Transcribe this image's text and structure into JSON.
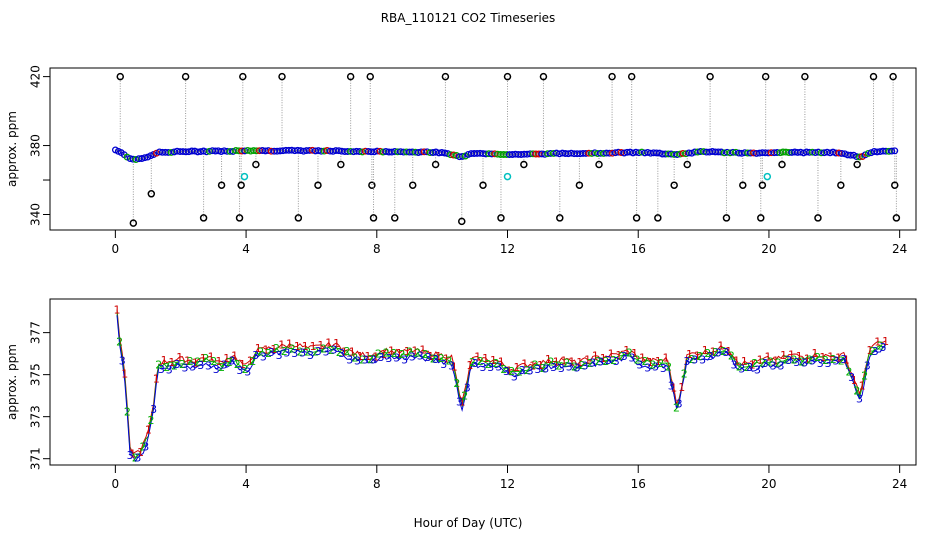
{
  "title": "RBA_110121  CO2 Timeseries",
  "xlabel": "Hour of Day (UTC)",
  "chart_data": [
    {
      "type": "scatter",
      "title": "RBA_110121  CO2 Timeseries",
      "ylabel": "approx. ppm",
      "xlim": [
        -2,
        24.5
      ],
      "ylim": [
        331,
        425
      ],
      "x_ticks": [
        "0",
        "4",
        "8",
        "12",
        "16",
        "20",
        "24"
      ],
      "y_ticks": [
        "340",
        "380",
        "420"
      ],
      "y_tick_values": [
        340,
        380,
        420
      ],
      "y_minor_ticks": [
        360
      ],
      "baseline": [
        [
          0,
          377.5
        ],
        [
          0.2,
          376
        ],
        [
          0.4,
          372.5
        ],
        [
          0.7,
          372
        ],
        [
          1.0,
          373.5
        ],
        [
          1.3,
          376
        ],
        [
          2,
          376.5
        ],
        [
          4,
          377
        ],
        [
          6,
          377
        ],
        [
          8,
          376.5
        ],
        [
          10,
          376
        ],
        [
          10.6,
          373.5
        ],
        [
          11,
          375.8
        ],
        [
          12,
          374.8
        ],
        [
          14,
          375.5
        ],
        [
          16,
          376
        ],
        [
          17.2,
          375
        ],
        [
          18,
          376.5
        ],
        [
          19.5,
          375.5
        ],
        [
          20,
          376
        ],
        [
          22,
          376
        ],
        [
          22.8,
          373.5
        ],
        [
          23.2,
          376.5
        ],
        [
          23.8,
          377
        ]
      ],
      "spikes_high": [
        0.15,
        2.15,
        3.9,
        5.1,
        7.2,
        7.8,
        10.1,
        12,
        13.1,
        15.2,
        15.8,
        18.2,
        19.9,
        21.1,
        23.2,
        23.8
      ],
      "spikes_low": [
        0.55,
        1.1,
        2.7,
        3.25,
        3.8,
        3.85,
        4.3,
        5.6,
        6.2,
        6.9,
        7.85,
        7.9,
        8.55,
        9.1,
        9.8,
        10.6,
        11.25,
        11.8,
        12.5,
        13.6,
        14.2,
        14.8,
        15.95,
        16.6,
        17.1,
        17.5,
        18.7,
        19.2,
        19.75,
        19.8,
        20.4,
        21.5,
        22.2,
        22.7,
        23.85,
        23.9
      ],
      "spike_low_values": [
        335,
        352,
        338,
        357,
        338,
        357,
        369,
        338,
        357,
        369,
        357,
        338,
        338,
        357,
        369,
        336,
        357,
        338,
        369,
        338,
        357,
        369,
        338,
        338,
        357,
        369,
        338,
        357,
        338,
        357,
        369,
        338,
        357,
        369,
        357,
        338
      ],
      "cyan_points": [
        [
          3.95,
          362
        ],
        [
          12,
          362
        ],
        [
          19.95,
          362
        ]
      ]
    },
    {
      "type": "scatter",
      "ylabel": "approx. ppm",
      "xlim": [
        -2,
        24.5
      ],
      "ylim": [
        370.7,
        378.6
      ],
      "x_ticks": [
        "0",
        "4",
        "8",
        "12",
        "16",
        "20",
        "24"
      ],
      "y_ticks": [
        "371",
        "373",
        "375",
        "377"
      ],
      "y_tick_values": [
        371,
        373,
        375,
        377
      ],
      "series_labels": [
        "1",
        "2",
        "3"
      ],
      "series_colors": [
        "#d00000",
        "#00b000",
        "#0000d0"
      ],
      "points": [
        [
          0.05,
          377.9
        ],
        [
          0.15,
          376.4
        ],
        [
          0.3,
          374.8
        ],
        [
          0.45,
          371.3
        ],
        [
          0.6,
          371.1
        ],
        [
          0.8,
          371.3
        ],
        [
          1.0,
          372.1
        ],
        [
          1.15,
          373.2
        ],
        [
          1.3,
          375.4
        ],
        [
          1.6,
          375.5
        ],
        [
          2.0,
          375.6
        ],
        [
          2.4,
          375.5
        ],
        [
          2.8,
          375.7
        ],
        [
          3.2,
          375.4
        ],
        [
          3.6,
          375.8
        ],
        [
          4.0,
          375.2
        ],
        [
          4.3,
          376.0
        ],
        [
          4.7,
          376.1
        ],
        [
          5.1,
          376.2
        ],
        [
          5.5,
          376.3
        ],
        [
          5.9,
          376.1
        ],
        [
          6.3,
          376.2
        ],
        [
          6.7,
          376.3
        ],
        [
          7.1,
          376.0
        ],
        [
          7.5,
          375.8
        ],
        [
          7.9,
          375.8
        ],
        [
          8.3,
          376.0
        ],
        [
          8.7,
          375.9
        ],
        [
          9.1,
          376.0
        ],
        [
          9.5,
          375.9
        ],
        [
          9.9,
          375.8
        ],
        [
          10.3,
          375.7
        ],
        [
          10.6,
          373.4
        ],
        [
          10.9,
          375.6
        ],
        [
          11.3,
          375.6
        ],
        [
          11.7,
          375.5
        ],
        [
          12.1,
          375.1
        ],
        [
          12.5,
          375.3
        ],
        [
          12.9,
          375.4
        ],
        [
          13.3,
          375.5
        ],
        [
          13.7,
          375.6
        ],
        [
          14.1,
          375.4
        ],
        [
          14.5,
          375.6
        ],
        [
          14.9,
          375.7
        ],
        [
          15.3,
          375.8
        ],
        [
          15.7,
          376.0
        ],
        [
          16.1,
          375.6
        ],
        [
          16.5,
          375.5
        ],
        [
          16.9,
          375.6
        ],
        [
          17.2,
          373.3
        ],
        [
          17.5,
          375.8
        ],
        [
          17.9,
          375.9
        ],
        [
          18.3,
          376.0
        ],
        [
          18.7,
          376.2
        ],
        [
          19.1,
          375.4
        ],
        [
          19.5,
          375.4
        ],
        [
          19.9,
          375.6
        ],
        [
          20.3,
          375.6
        ],
        [
          20.7,
          375.8
        ],
        [
          21.1,
          375.7
        ],
        [
          21.5,
          375.8
        ],
        [
          21.9,
          375.7
        ],
        [
          22.3,
          375.8
        ],
        [
          22.8,
          373.9
        ],
        [
          23.1,
          376.2
        ],
        [
          23.5,
          376.4
        ]
      ]
    }
  ]
}
